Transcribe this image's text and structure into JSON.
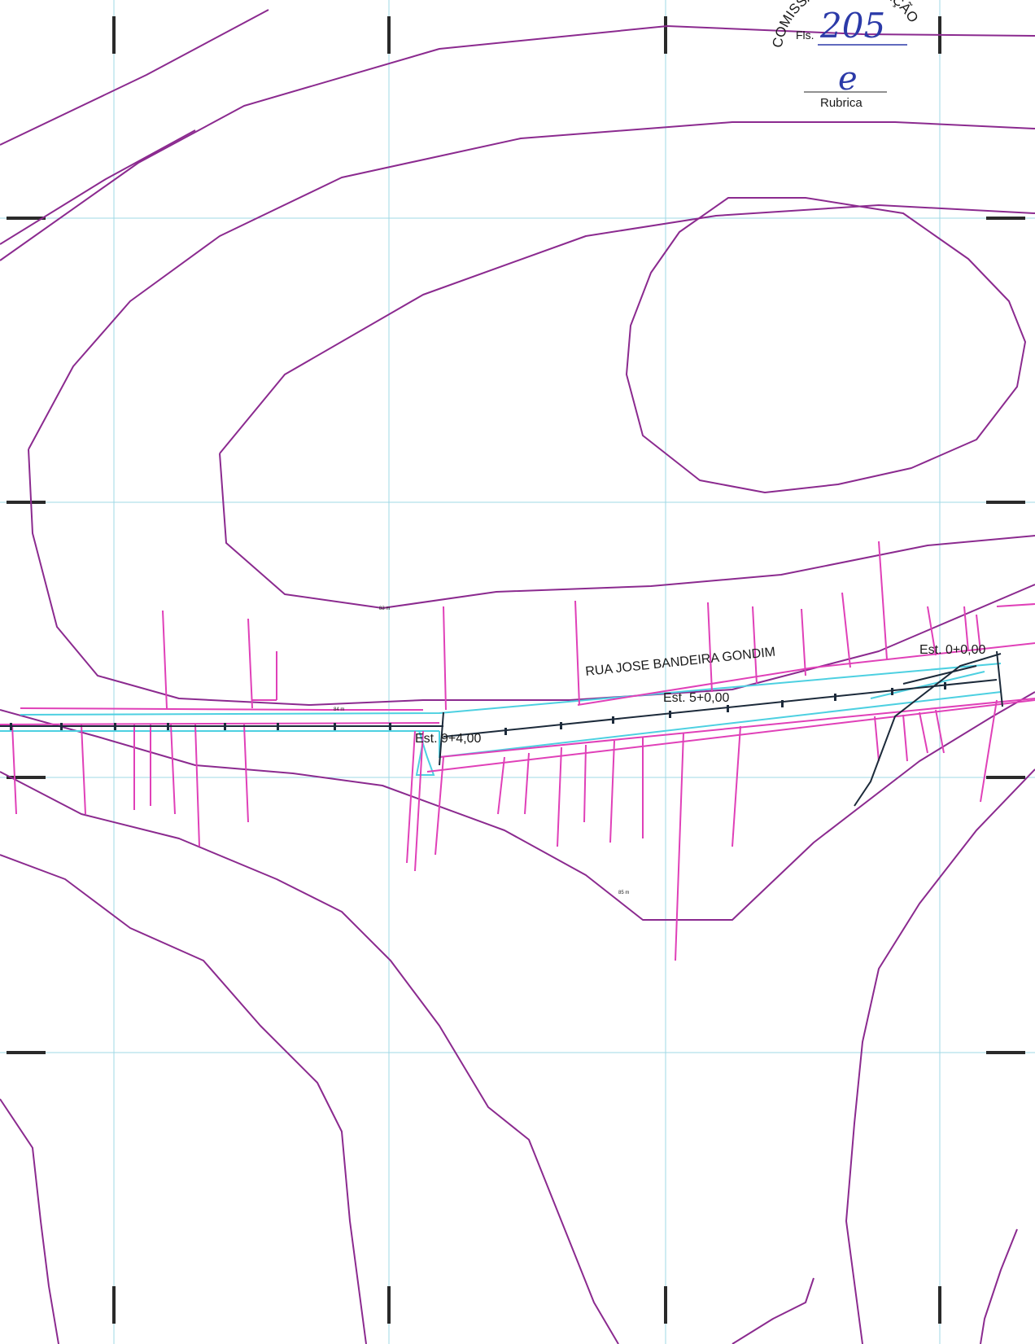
{
  "street_label": "RUA JOSE BANDEIRA GONDIM",
  "stations": {
    "start": "Est. 0+0,00",
    "mid": "Est. 5+0,00",
    "end": "Est. 9+4,00"
  },
  "contour_labels": {
    "c1": "83 m",
    "c2": "84 m",
    "c3": "85 m"
  },
  "stamp": {
    "arc_text": "COMISSÃO DE LICITAÇÃO",
    "fls_label": "Fls.",
    "page_number": "205",
    "rubrica_label": "Rubrica",
    "initial": "e"
  },
  "colors": {
    "contour": "#8b2a8f",
    "lots": "#e040b8",
    "road": "#4dd0e1",
    "grid": "#9fd9e6",
    "axis": "#1c2a3a",
    "stamp_ink": "#2b3aa8"
  }
}
